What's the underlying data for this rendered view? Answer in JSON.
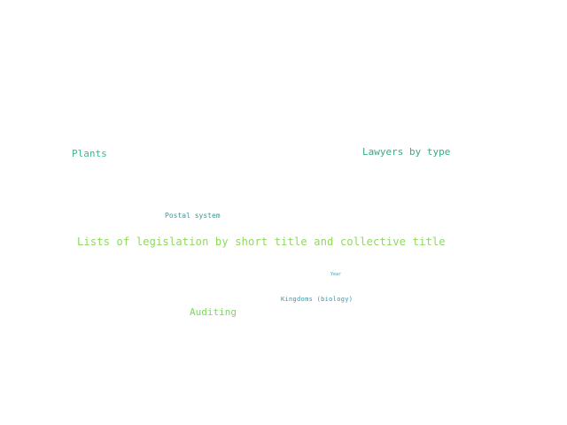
{
  "word_cloud": {
    "words": [
      {
        "text": "Plants",
        "color": "#3dba8a"
      },
      {
        "text": "Lawyers by type",
        "color": "#3aaa7e"
      },
      {
        "text": "Postal system",
        "color": "#3a9a9a"
      },
      {
        "text": "Lists of legislation by short title and collective title",
        "color": "#8fd85e"
      },
      {
        "text": "Year",
        "color": "#3aa6b6"
      },
      {
        "text": "Kingdoms (biology)",
        "color": "#3596a8"
      },
      {
        "text": "Auditing",
        "color": "#7fd860"
      }
    ]
  }
}
